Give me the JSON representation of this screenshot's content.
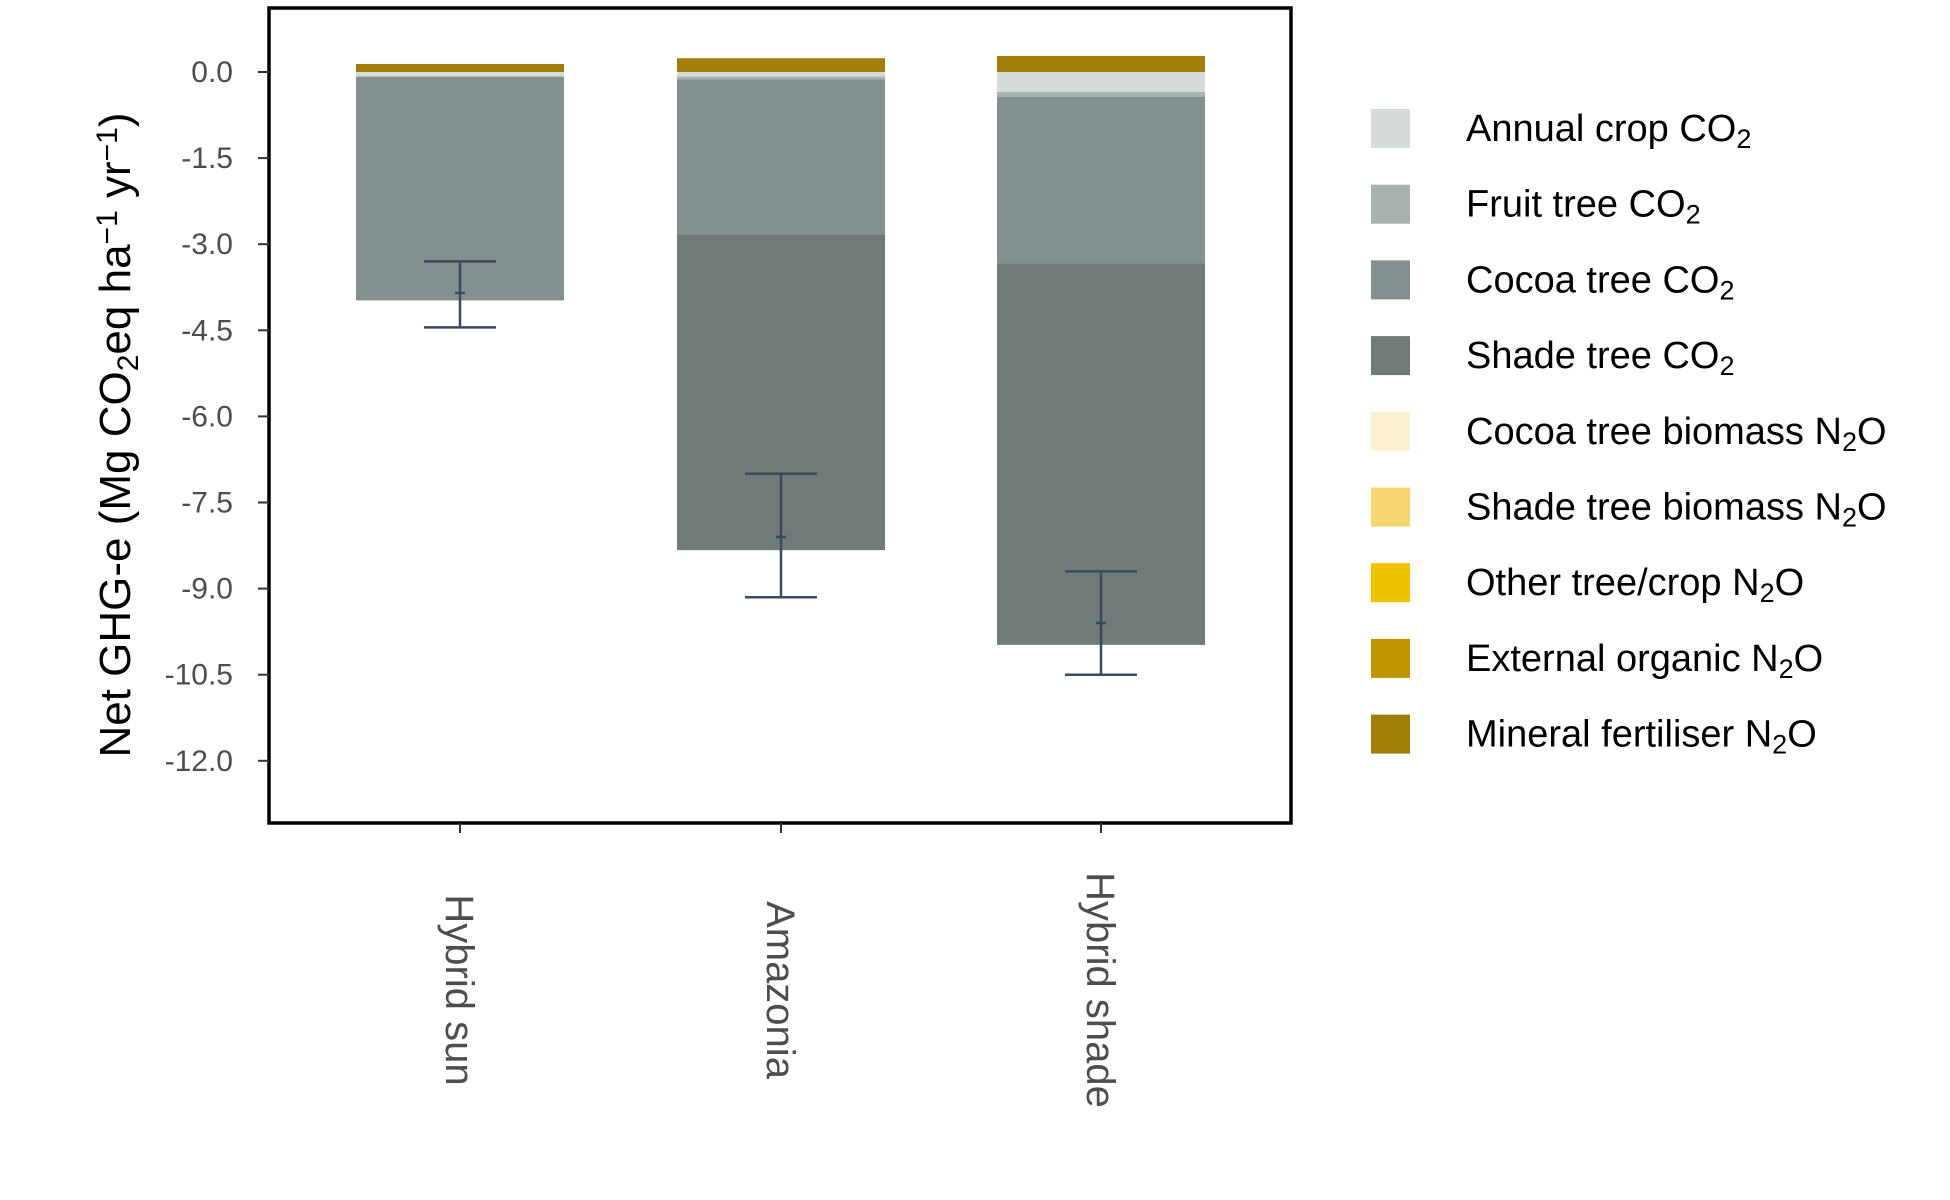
{
  "chart_data": {
    "type": "bar",
    "stacked": true,
    "categories": [
      "Hybrid sun",
      "Amazonia",
      "Hybrid shade"
    ],
    "ylabel": {
      "parts": [
        {
          "text": "Net GHG-e (Mg  CO"
        },
        {
          "text": "2",
          "sub": true
        },
        {
          "text": "eq ha"
        },
        {
          "text": "−1",
          "sup": true
        },
        {
          "text": " yr"
        },
        {
          "text": "−1",
          "sup": true
        },
        {
          "text": ")"
        }
      ]
    },
    "ylim": [
      -13.0,
      1.1
    ],
    "yticks": [
      0.0,
      -1.5,
      -3.0,
      -4.5,
      -6.0,
      -7.5,
      -9.0,
      -10.5,
      -12.0
    ],
    "ytick_labels": [
      "0.0",
      "-1.5",
      "-3.0",
      "-4.5",
      "-6.0",
      "-7.5",
      "-9.0",
      "-10.5",
      "-12.0"
    ],
    "grid": false,
    "legend_position": "right",
    "series": [
      {
        "name": "Annual crop CO₂",
        "label_parts": [
          {
            "text": "Annual crop CO"
          },
          {
            "text": "2",
            "sub": true
          }
        ],
        "color": "#d6dcdb",
        "values": [
          -0.08,
          -0.08,
          -0.35
        ]
      },
      {
        "name": "Fruit tree CO₂",
        "label_parts": [
          {
            "text": "Fruit tree CO"
          },
          {
            "text": "2",
            "sub": true
          }
        ],
        "color": "#a8b2b1",
        "values": [
          0,
          -0.05,
          -0.08
        ]
      },
      {
        "name": "Cocoa tree CO₂",
        "label_parts": [
          {
            "text": "Cocoa tree CO"
          },
          {
            "text": "2",
            "sub": true
          }
        ],
        "color": "#84908f",
        "values": [
          -3.9,
          -2.7,
          -2.9
        ]
      },
      {
        "name": "Shade tree CO₂",
        "label_parts": [
          {
            "text": "Shade tree CO"
          },
          {
            "text": "2",
            "sub": true
          }
        ],
        "color": "#6f7a79",
        "values": [
          0,
          -5.5,
          -6.65
        ]
      },
      {
        "name": "Cocoa tree biomass N₂O",
        "label_parts": [
          {
            "text": "Cocoa tree biomass N"
          },
          {
            "text": "2",
            "sub": true
          },
          {
            "text": "O"
          }
        ],
        "color": "#fbf1d0",
        "values": [
          0.0,
          0.0,
          0.0
        ]
      },
      {
        "name": "Shade tree biomass N₂O",
        "label_parts": [
          {
            "text": "Shade tree biomass N"
          },
          {
            "text": "2",
            "sub": true
          },
          {
            "text": "O"
          }
        ],
        "color": "#f5d670",
        "values": [
          0.0,
          0.0,
          0.0
        ]
      },
      {
        "name": "Other tree/crop N₂O",
        "label_parts": [
          {
            "text": "Other tree/crop N"
          },
          {
            "text": "2",
            "sub": true
          },
          {
            "text": "O"
          }
        ],
        "color": "#f1c200",
        "values": [
          0.0,
          0.0,
          0.0
        ]
      },
      {
        "name": "External organic N₂O",
        "label_parts": [
          {
            "text": "External organic N"
          },
          {
            "text": "2",
            "sub": true
          },
          {
            "text": "O"
          }
        ],
        "color": "#bf9600",
        "values": [
          0.0,
          0.0,
          0.0
        ]
      },
      {
        "name": "Mineral fertiliser N₂O",
        "label_parts": [
          {
            "text": "Mineral fertiliser N"
          },
          {
            "text": "2",
            "sub": true
          },
          {
            "text": "O"
          }
        ],
        "color": "#a07e0a",
        "values": [
          0.14,
          0.24,
          0.28
        ]
      }
    ],
    "net_values": [
      -3.85,
      -8.1,
      -9.6
    ],
    "error_bars": [
      {
        "low": -4.45,
        "high": -3.3
      },
      {
        "low": -9.15,
        "high": -7.0
      },
      {
        "low": -10.5,
        "high": -8.7
      }
    ]
  }
}
